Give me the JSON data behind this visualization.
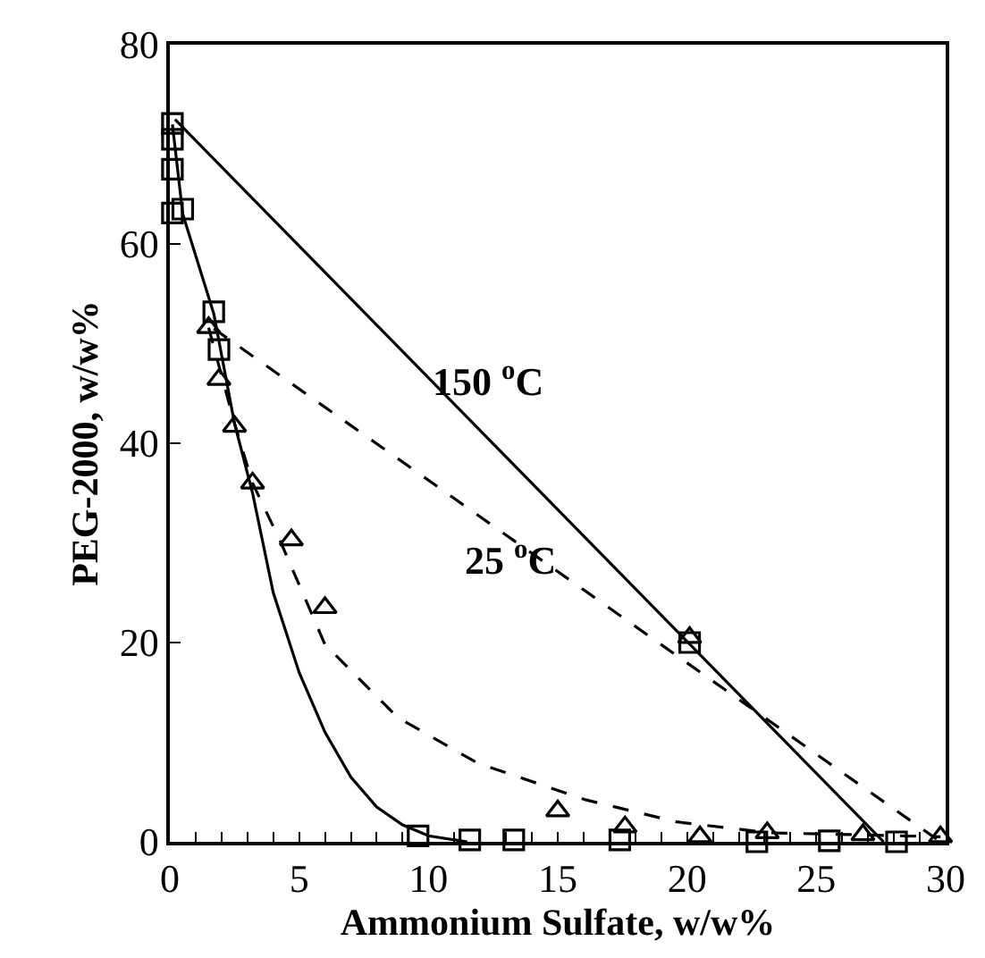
{
  "chart_data": {
    "type": "scatter",
    "xlabel": "Ammonium Sulfate, w/w%",
    "ylabel": "PEG-2000, w/w%",
    "xlim": [
      0,
      30
    ],
    "ylim": [
      0,
      80
    ],
    "xticks": [
      0,
      {
        "value": 1,
        "label": null
      },
      {
        "value": 2,
        "label": null
      },
      {
        "value": 3,
        "label": null
      },
      {
        "value": 4,
        "label": null
      },
      5,
      {
        "value": 6,
        "label": null
      },
      {
        "value": 7,
        "label": null
      },
      {
        "value": 8,
        "label": null
      },
      {
        "value": 9,
        "label": null
      },
      10,
      {
        "value": 11,
        "label": null
      },
      {
        "value": 12,
        "label": null
      },
      {
        "value": 13,
        "label": null
      },
      {
        "value": 14,
        "label": null
      },
      15,
      {
        "value": 16,
        "label": null
      },
      {
        "value": 17,
        "label": null
      },
      {
        "value": 18,
        "label": null
      },
      {
        "value": 19,
        "label": null
      },
      20,
      {
        "value": 21,
        "label": null
      },
      {
        "value": 22,
        "label": null
      },
      {
        "value": 23,
        "label": null
      },
      {
        "value": 24,
        "label": null
      },
      25,
      {
        "value": 26,
        "label": null
      },
      {
        "value": 27,
        "label": null
      },
      {
        "value": 28,
        "label": null
      },
      {
        "value": 29,
        "label": null
      },
      30
    ],
    "yticks": [
      0,
      20,
      40,
      60,
      80
    ],
    "grid": false,
    "series": [
      {
        "type": "line",
        "color": "#000000",
        "marker": "none",
        "line_style": "solid",
        "x": [
          0.2,
          27.6
        ],
        "values": [
          72.5,
          0
        ]
      },
      {
        "type": "line",
        "color": "#000000",
        "marker": "none",
        "line_style": "solid",
        "x": [
          0.1,
          0.5,
          1.7,
          2.5,
          3.2,
          4,
          5,
          6,
          7,
          8,
          9,
          10,
          11.5
        ],
        "values": [
          72,
          63,
          53,
          42,
          35,
          25,
          17,
          11,
          6.5,
          3.5,
          1.7,
          0.6,
          0
        ]
      },
      {
        "type": "line",
        "color": "#000000",
        "marker": "none",
        "line_style": "dashed",
        "x": [
          1.7,
          29.8
        ],
        "values": [
          51.5,
          0
        ]
      },
      {
        "type": "line",
        "color": "#000000",
        "marker": "none",
        "line_style": "dashed",
        "x": [
          1.5,
          2.5,
          3.2,
          4.3,
          6,
          8.8,
          11.9,
          16.1,
          19.6,
          23.2,
          26.8,
          29.8
        ],
        "values": [
          51.6,
          42,
          36,
          30,
          19.8,
          12.5,
          7.9,
          4.2,
          2,
          0.9,
          0.7,
          0.5
        ]
      },
      {
        "color": "#000000",
        "marker": "square",
        "x": [
          0.1,
          0.1,
          0.1,
          0.1,
          0.5,
          1.7,
          1.9,
          9.6,
          11.6,
          13.3,
          17.4,
          20.1,
          22.7,
          25.5,
          28.1
        ],
        "values": [
          72.1,
          70.5,
          67.5,
          63.1,
          63.5,
          53.2,
          49.4,
          0.6,
          0.2,
          0.2,
          0.2,
          20,
          0,
          0.1,
          0
        ]
      },
      {
        "color": "#000000",
        "marker": "triangle",
        "x": [
          1.5,
          1.9,
          2.5,
          3.2,
          4.7,
          6,
          15,
          17.6,
          20.1,
          20.5,
          23.1,
          26.8,
          29.8
        ],
        "values": [
          51.6,
          46.4,
          41.7,
          36,
          30.3,
          23.5,
          3.1,
          1.5,
          20.5,
          0.5,
          0.9,
          0.7,
          0.5
        ]
      }
    ],
    "annotations": [
      "150 $^{o}$C",
      "25 $^{o}$C"
    ]
  }
}
